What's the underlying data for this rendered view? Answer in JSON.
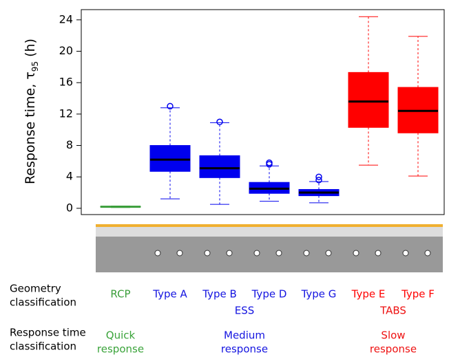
{
  "chart_data": {
    "type": "box",
    "ylabel": [
      "Response time, τ",
      "95",
      " (h)"
    ],
    "categories": [
      "RCP",
      "Type A",
      "Type B",
      "Type D",
      "Type G",
      "Type E",
      "Type F"
    ],
    "boxes": [
      {
        "whislo": 0.1,
        "q1": 0.15,
        "med": 0.2,
        "q3": 0.25,
        "whishi": 0.3,
        "fliers": [],
        "color": "#3a9e3a"
      },
      {
        "whislo": 1.2,
        "q1": 4.7,
        "med": 6.2,
        "q3": 8.0,
        "whishi": 12.8,
        "fliers": [
          13.0
        ],
        "color": "#0000ee"
      },
      {
        "whislo": 0.5,
        "q1": 3.9,
        "med": 5.1,
        "q3": 6.7,
        "whishi": 10.9,
        "fliers": [
          11.0
        ],
        "color": "#0000ee"
      },
      {
        "whislo": 0.9,
        "q1": 1.9,
        "med": 2.5,
        "q3": 3.3,
        "whishi": 5.4,
        "fliers": [
          5.6,
          5.8
        ],
        "color": "#0000ee"
      },
      {
        "whislo": 0.7,
        "q1": 1.6,
        "med": 2.0,
        "q3": 2.4,
        "whishi": 3.4,
        "fliers": [
          3.6,
          4.0
        ],
        "color": "#0000ee"
      },
      {
        "whislo": 5.5,
        "q1": 10.3,
        "med": 13.6,
        "q3": 17.3,
        "whishi": 24.4,
        "fliers": [],
        "color": "#ff0000"
      },
      {
        "whislo": 4.1,
        "q1": 9.6,
        "med": 12.4,
        "q3": 15.4,
        "whishi": 21.9,
        "fliers": [],
        "color": "#ff0000"
      }
    ],
    "ylim": [
      -0.8,
      25.3
    ],
    "yticks": [
      0,
      4,
      8,
      12,
      16,
      20,
      24
    ]
  },
  "geometry_label": [
    "Geometry",
    "classification"
  ],
  "groups": [
    {
      "name": "ESS",
      "from": 1,
      "to": 4,
      "color": "#1414e0"
    },
    {
      "name": "TABS",
      "from": 5,
      "to": 6,
      "color": "#ee1111"
    }
  ],
  "response_label": [
    "Response time",
    "classification"
  ],
  "response_classes": [
    {
      "lines": [
        "Quick",
        "response"
      ],
      "from": 0,
      "to": 0,
      "color": "#3aa33a"
    },
    {
      "lines": [
        "Medium",
        "response"
      ],
      "from": 1,
      "to": 4,
      "color": "#1414e0"
    },
    {
      "lines": [
        "Slow",
        "response"
      ],
      "from": 5,
      "to": 6,
      "color": "#ee1111"
    }
  ]
}
